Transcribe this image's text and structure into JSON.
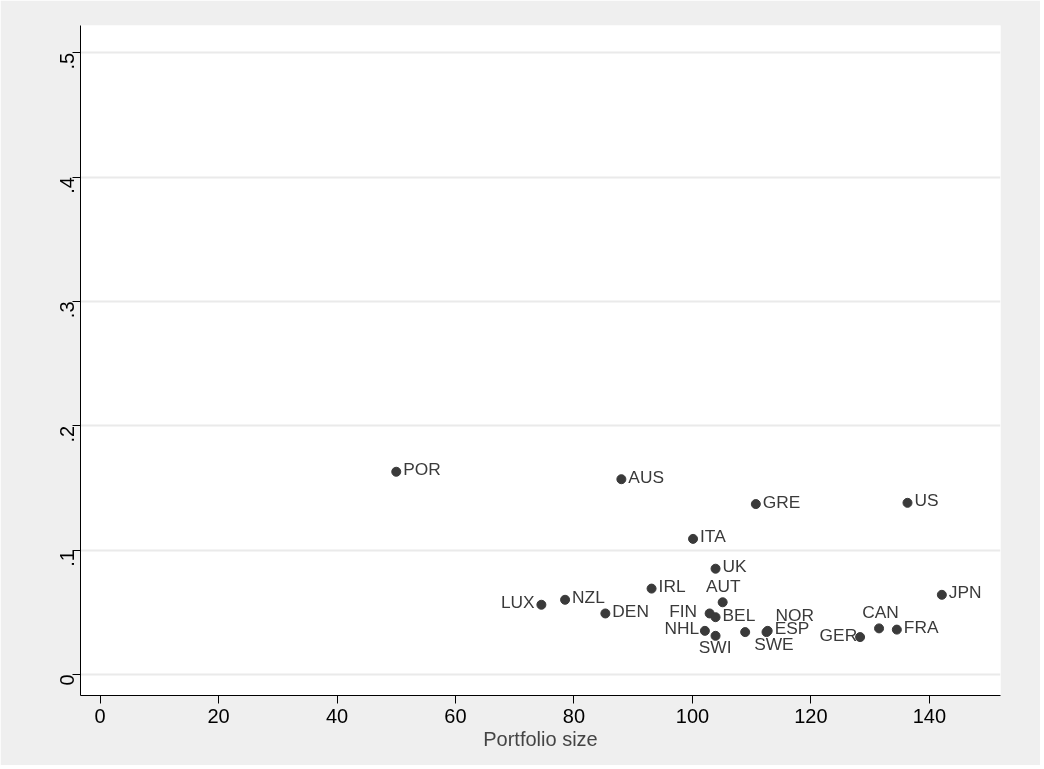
{
  "chart_data": {
    "type": "scatter",
    "xlabel": "Portfolio size",
    "x": [
      50,
      88,
      110.7,
      136.3,
      100.1,
      103.9,
      93.1,
      78.5,
      74.5,
      85.3,
      102.9,
      103.9,
      105.1,
      102.1,
      103.9,
      108.9,
      112.5,
      112.7,
      128.3,
      131.5,
      134.5,
      142.1
    ],
    "series": [
      {
        "color": "#3a3a3a",
        "values": [
          0.163,
          0.157,
          0.137,
          0.138,
          0.109,
          0.085,
          0.069,
          0.06,
          0.056,
          0.049,
          0.049,
          0.046,
          0.058,
          0.035,
          0.031,
          0.034,
          0.034,
          0.035,
          0.03,
          0.037,
          0.036,
          0.064
        ],
        "value_labels": [
          "POR",
          "AUS",
          "GRE",
          "US",
          "ITA",
          "UK",
          "IRL",
          "NZL",
          "LUX",
          "DEN",
          "FIN",
          "BEL",
          "AUT",
          "NHL",
          "SWI",
          "SWE",
          "NOR",
          "ESP",
          "GER",
          "CAN",
          "FRA",
          "JPN"
        ]
      }
    ],
    "xlim": [
      -3.3,
      152
    ],
    "ylim": [
      -0.017,
      0.522
    ],
    "xticks": [
      0,
      20,
      40,
      60,
      80,
      100,
      120,
      140
    ],
    "yticks": [
      {
        "value": 0,
        "label": "0"
      },
      {
        "value": 0.1,
        "label": ".1"
      },
      {
        "value": 0.2,
        "label": ".2"
      },
      {
        "value": 0.3,
        "label": ".3"
      },
      {
        "value": 0.4,
        "label": ".4"
      },
      {
        "value": 0.5,
        "label": ".5"
      }
    ],
    "grid": "y",
    "marker": "circle"
  }
}
